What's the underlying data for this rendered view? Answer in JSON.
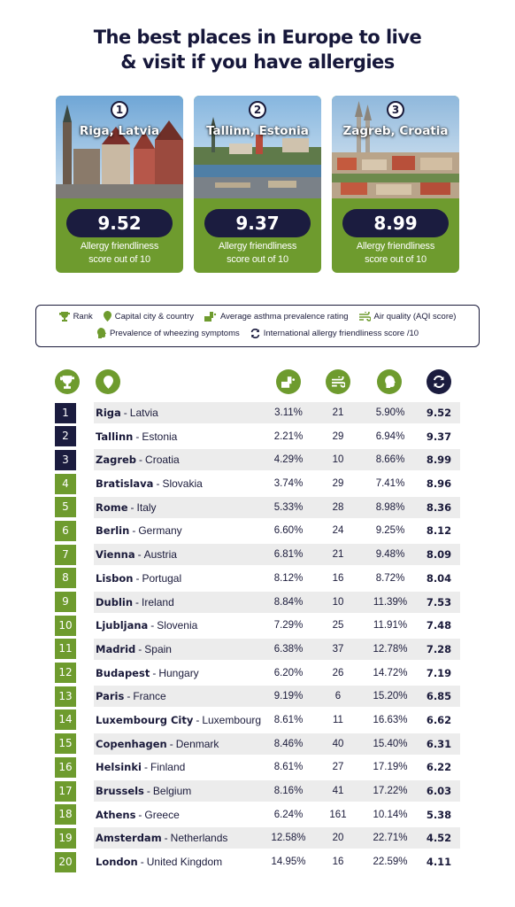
{
  "title": [
    "The best places in Europe to live",
    "& visit if you have allergies"
  ],
  "top3": [
    {
      "rank": "1",
      "name": "Riga, Latvia",
      "score": "9.52",
      "caption": [
        "Allergy friendliness",
        "score out of 10"
      ]
    },
    {
      "rank": "2",
      "name": "Tallinn, Estonia",
      "score": "9.37",
      "caption": [
        "Allergy friendliness",
        "score out of 10"
      ]
    },
    {
      "rank": "3",
      "name": "Zagreb, Croatia",
      "score": "8.99",
      "caption": [
        "Allergy friendliness",
        "score out of 10"
      ]
    }
  ],
  "legend": {
    "rank": "Rank",
    "capital": "Capital city & country",
    "asthma": "Average asthma prevalence rating",
    "air": "Air quality (AQI score)",
    "wheeze": "Prevalence of wheezing symptoms",
    "score": "International allergy friendliness score /10"
  },
  "colors": {
    "navy": "#1b1c3f",
    "green": "#6e9b2e",
    "row_shade": "#ececec"
  },
  "chart_data": {
    "type": "table",
    "columns": [
      "Rank",
      "Capital city & country",
      "Average asthma prevalence rating",
      "Air quality (AQI score)",
      "Prevalence of wheezing symptoms",
      "International allergy friendliness score /10"
    ],
    "rows": [
      {
        "rank": "1",
        "city": "Riga",
        "country": "Latvia",
        "asthma": "3.11%",
        "aqi": "21",
        "wheeze": "5.90%",
        "score": "9.52"
      },
      {
        "rank": "2",
        "city": "Tallinn",
        "country": "Estonia",
        "asthma": "2.21%",
        "aqi": "29",
        "wheeze": "6.94%",
        "score": "9.37"
      },
      {
        "rank": "3",
        "city": "Zagreb",
        "country": "Croatia",
        "asthma": "4.29%",
        "aqi": "10",
        "wheeze": "8.66%",
        "score": "8.99"
      },
      {
        "rank": "4",
        "city": "Bratislava",
        "country": "Slovakia",
        "asthma": "3.74%",
        "aqi": "29",
        "wheeze": "7.41%",
        "score": "8.96"
      },
      {
        "rank": "5",
        "city": "Rome",
        "country": "Italy",
        "asthma": "5.33%",
        "aqi": "28",
        "wheeze": "8.98%",
        "score": "8.36"
      },
      {
        "rank": "6",
        "city": "Berlin",
        "country": "Germany",
        "asthma": "6.60%",
        "aqi": "24",
        "wheeze": "9.25%",
        "score": "8.12"
      },
      {
        "rank": "7",
        "city": "Vienna",
        "country": "Austria",
        "asthma": "6.81%",
        "aqi": "21",
        "wheeze": "9.48%",
        "score": "8.09"
      },
      {
        "rank": "8",
        "city": "Lisbon",
        "country": "Portugal",
        "asthma": "8.12%",
        "aqi": "16",
        "wheeze": "8.72%",
        "score": "8.04"
      },
      {
        "rank": "9",
        "city": "Dublin",
        "country": "Ireland",
        "asthma": "8.84%",
        "aqi": "10",
        "wheeze": "11.39%",
        "score": "7.53"
      },
      {
        "rank": "10",
        "city": "Ljubljana",
        "country": "Slovenia",
        "asthma": "7.29%",
        "aqi": "25",
        "wheeze": "11.91%",
        "score": "7.48"
      },
      {
        "rank": "11",
        "city": "Madrid",
        "country": "Spain",
        "asthma": "6.38%",
        "aqi": "37",
        "wheeze": "12.78%",
        "score": "7.28"
      },
      {
        "rank": "12",
        "city": "Budapest",
        "country": "Hungary",
        "asthma": "6.20%",
        "aqi": "26",
        "wheeze": "14.72%",
        "score": "7.19"
      },
      {
        "rank": "13",
        "city": "Paris",
        "country": "France",
        "asthma": "9.19%",
        "aqi": "6",
        "wheeze": "15.20%",
        "score": "6.85"
      },
      {
        "rank": "14",
        "city": "Luxembourg City",
        "country": "Luxembourg",
        "asthma": "8.61%",
        "aqi": "11",
        "wheeze": "16.63%",
        "score": "6.62"
      },
      {
        "rank": "15",
        "city": "Copenhagen",
        "country": "Denmark",
        "asthma": "8.46%",
        "aqi": "40",
        "wheeze": "15.40%",
        "score": "6.31"
      },
      {
        "rank": "16",
        "city": "Helsinki",
        "country": "Finland",
        "asthma": "8.61%",
        "aqi": "27",
        "wheeze": "17.19%",
        "score": "6.22"
      },
      {
        "rank": "17",
        "city": "Brussels",
        "country": "Belgium",
        "asthma": "8.16%",
        "aqi": "41",
        "wheeze": "17.22%",
        "score": "6.03"
      },
      {
        "rank": "18",
        "city": "Athens",
        "country": "Greece",
        "asthma": "6.24%",
        "aqi": "161",
        "wheeze": "10.14%",
        "score": "5.38"
      },
      {
        "rank": "19",
        "city": "Amsterdam",
        "country": "Netherlands",
        "asthma": "12.58%",
        "aqi": "20",
        "wheeze": "22.71%",
        "score": "4.52"
      },
      {
        "rank": "20",
        "city": "London",
        "country": "United Kingdom",
        "asthma": "14.95%",
        "aqi": "16",
        "wheeze": "22.59%",
        "score": "4.11"
      }
    ]
  }
}
